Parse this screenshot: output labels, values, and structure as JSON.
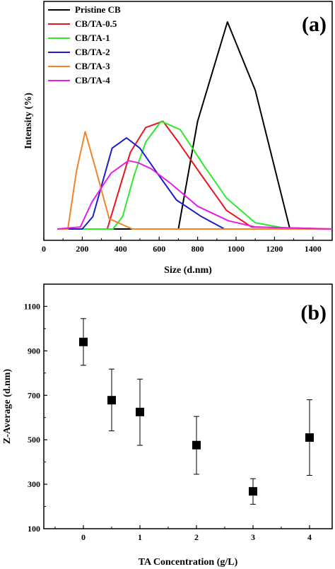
{
  "chart_data": [
    {
      "type": "line",
      "panel_label": "(a)",
      "xlabel": "Size (d.nm)",
      "ylabel": "Intensity (%)",
      "xlim": [
        0,
        1500
      ],
      "ylim": [
        0,
        1
      ],
      "xticks": [
        "0",
        "200",
        "400",
        "600",
        "800",
        "1000",
        "1200",
        "1400"
      ],
      "legend_position": "top-left",
      "grid": false,
      "series": [
        {
          "name": "Pristine CB",
          "color": "#000000",
          "x": [
            70,
            700,
            800,
            955,
            1100,
            1280,
            1500
          ],
          "y": [
            0,
            0,
            0.52,
            1.0,
            0.67,
            0,
            0
          ]
        },
        {
          "name": "CB/TA-0.5",
          "color": "#e8141c",
          "x": [
            70,
            330,
            450,
            530,
            620,
            700,
            820,
            950,
            1080,
            1500
          ],
          "y": [
            0,
            0,
            0.37,
            0.49,
            0.52,
            0.42,
            0.26,
            0.09,
            0.01,
            0
          ]
        },
        {
          "name": "CB/TA-1",
          "color": "#2ee82e",
          "x": [
            70,
            360,
            410,
            470,
            530,
            610,
            710,
            830,
            950,
            1100,
            1280,
            1500
          ],
          "y": [
            0,
            0,
            0.06,
            0.26,
            0.42,
            0.52,
            0.48,
            0.31,
            0.15,
            0.03,
            0,
            0
          ]
        },
        {
          "name": "CB/TA-2",
          "color": "#1c1cc8",
          "x": [
            70,
            200,
            255,
            355,
            430,
            500,
            590,
            690,
            820,
            940,
            1500
          ],
          "y": [
            0,
            0,
            0.06,
            0.39,
            0.44,
            0.39,
            0.27,
            0.14,
            0.06,
            0,
            0
          ]
        },
        {
          "name": "CB/TA-3",
          "color": "#f0842a",
          "x": [
            70,
            125,
            170,
            215,
            270,
            340,
            460,
            1500
          ],
          "y": [
            0,
            0,
            0.28,
            0.47,
            0.29,
            0.05,
            0,
            0
          ]
        },
        {
          "name": "CB/TA-4",
          "color": "#e81ce8",
          "x": [
            70,
            190,
            250,
            350,
            440,
            490,
            560,
            660,
            800,
            960,
            1100,
            1500
          ],
          "y": [
            0,
            0.01,
            0.13,
            0.27,
            0.33,
            0.32,
            0.29,
            0.22,
            0.11,
            0.04,
            0.01,
            0
          ]
        }
      ]
    },
    {
      "type": "scatter",
      "panel_label": "(b)",
      "xlabel": "TA Concentration (g/L)",
      "ylabel": "Z-Average (d.nm)",
      "xlim": [
        -0.7,
        4.4
      ],
      "ylim": [
        100,
        1200
      ],
      "xticks": [
        "0",
        "1",
        "2",
        "3",
        "4"
      ],
      "yticks": [
        "100",
        "300",
        "500",
        "700",
        "900",
        "1100"
      ],
      "marker": "filled square",
      "error_bars": true,
      "grid": false,
      "points": [
        {
          "x": 0,
          "y": 940,
          "err_low": 835,
          "err_high": 1045
        },
        {
          "x": 0.5,
          "y": 678,
          "err_low": 540,
          "err_high": 818
        },
        {
          "x": 1,
          "y": 625,
          "err_low": 475,
          "err_high": 773
        },
        {
          "x": 2,
          "y": 476,
          "err_low": 345,
          "err_high": 605
        },
        {
          "x": 3,
          "y": 268,
          "err_low": 210,
          "err_high": 325
        },
        {
          "x": 4,
          "y": 510,
          "err_low": 340,
          "err_high": 680
        }
      ]
    }
  ]
}
